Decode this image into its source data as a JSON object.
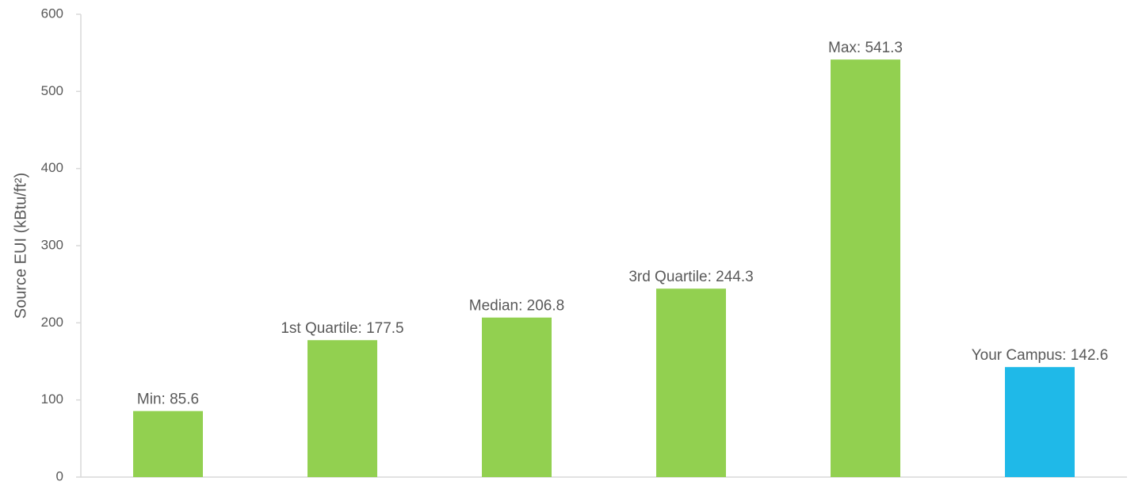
{
  "chart_data": {
    "type": "bar",
    "ylabel": "Source EUI (kBtu/ft²)",
    "ylim": [
      0,
      600
    ],
    "yticks": [
      0,
      100,
      200,
      300,
      400,
      500,
      600
    ],
    "grid": false,
    "bars": [
      {
        "label": "Min: 85.6",
        "value": 85.6,
        "color": "#92d050"
      },
      {
        "label": "1st Quartile: 177.5",
        "value": 177.5,
        "color": "#92d050"
      },
      {
        "label": "Median: 206.8",
        "value": 206.8,
        "color": "#92d050"
      },
      {
        "label": "3rd Quartile: 244.3",
        "value": 244.3,
        "color": "#92d050"
      },
      {
        "label": "Max: 541.3",
        "value": 541.3,
        "color": "#92d050"
      },
      {
        "label": "Your Campus: 142.6",
        "value": 142.6,
        "color": "#1fb9e8"
      }
    ]
  }
}
